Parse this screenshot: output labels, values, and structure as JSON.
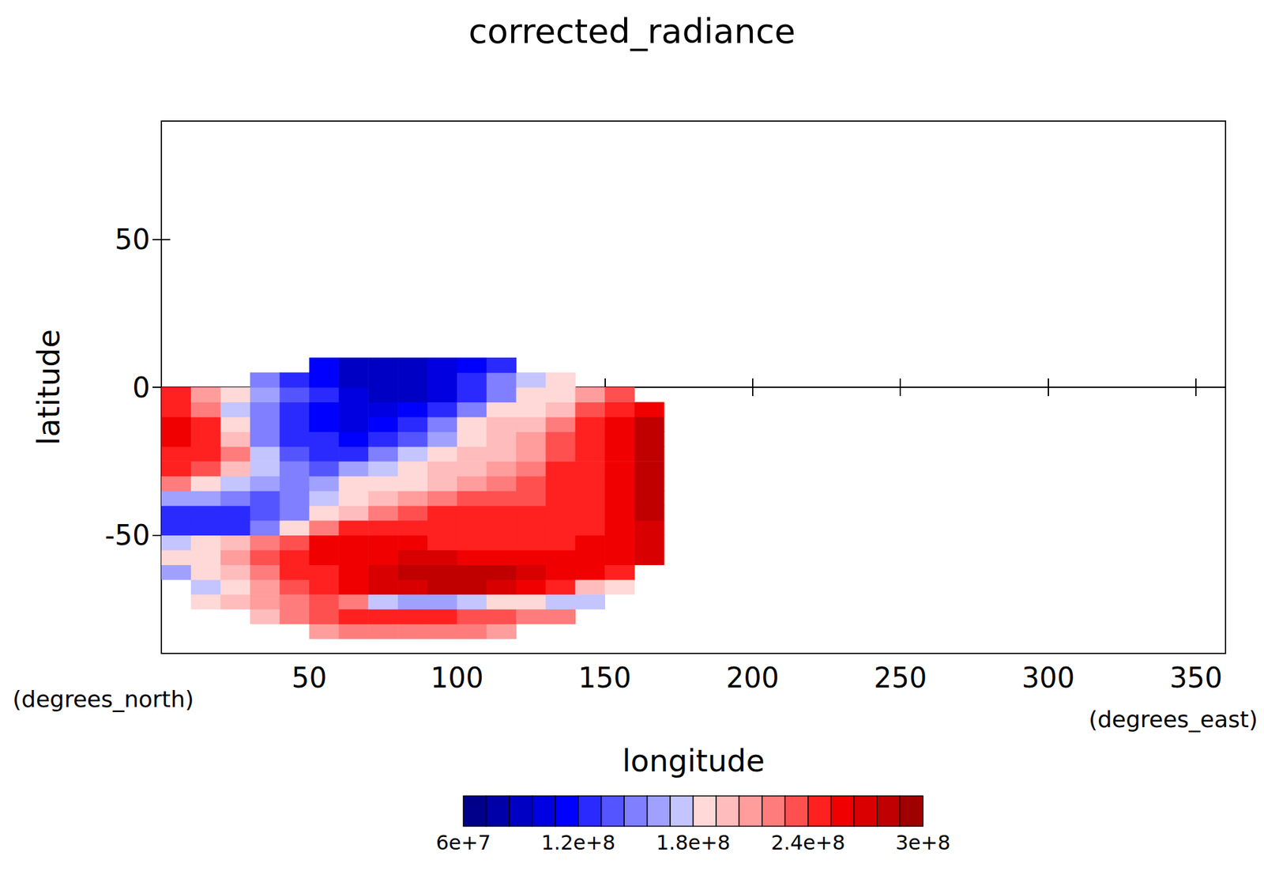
{
  "chart_data": {
    "type": "heatmap",
    "title": "corrected_radiance",
    "x_label": "longitude",
    "y_label": "latitude",
    "x_unit": "(degrees_east)",
    "y_unit": "(degrees_north)",
    "xlim": [
      0,
      360
    ],
    "xticks": [
      50,
      100,
      150,
      200,
      250,
      300,
      350
    ],
    "ylim": [
      -90,
      90
    ],
    "yticks": [
      -50,
      0,
      50
    ],
    "x": [
      0,
      10,
      20,
      30,
      40,
      50,
      60,
      70,
      80,
      90,
      100,
      110,
      120,
      130,
      140,
      150,
      160,
      170
    ],
    "y": [
      -85,
      -80,
      -75,
      -70,
      -65,
      -60,
      -55,
      -50,
      -45,
      -40,
      -35,
      -30,
      -25,
      -20,
      -15,
      -10,
      -5,
      0,
      5,
      10
    ],
    "cells": [
      [
        null,
        null,
        null,
        null,
        null,
        210000000.0,
        220000000.0,
        220000000.0,
        220000000.0,
        220000000.0,
        220000000.0,
        210000000.0,
        null,
        null,
        null,
        null,
        null
      ],
      [
        null,
        null,
        null,
        200000000.0,
        220000000.0,
        230000000.0,
        240000000.0,
        240000000.0,
        240000000.0,
        240000000.0,
        230000000.0,
        230000000.0,
        220000000.0,
        220000000.0,
        null,
        null,
        null
      ],
      [
        null,
        190000000.0,
        200000000.0,
        210000000.0,
        220000000.0,
        230000000.0,
        220000000.0,
        170000000.0,
        160000000.0,
        160000000.0,
        170000000.0,
        180000000.0,
        180000000.0,
        170000000.0,
        170000000.0,
        null,
        null
      ],
      [
        null,
        170000000.0,
        190000000.0,
        210000000.0,
        230000000.0,
        250000000.0,
        260000000.0,
        270000000.0,
        270000000.0,
        280000000.0,
        280000000.0,
        270000000.0,
        260000000.0,
        240000000.0,
        200000000.0,
        180000000.0,
        null
      ],
      [
        160000000.0,
        180000000.0,
        200000000.0,
        220000000.0,
        240000000.0,
        250000000.0,
        260000000.0,
        270000000.0,
        280000000.0,
        280000000.0,
        280000000.0,
        280000000.0,
        270000000.0,
        260000000.0,
        260000000.0,
        250000000.0,
        null
      ],
      [
        190000000.0,
        190000000.0,
        210000000.0,
        230000000.0,
        240000000.0,
        260000000.0,
        260000000.0,
        260000000.0,
        270000000.0,
        270000000.0,
        260000000.0,
        260000000.0,
        260000000.0,
        260000000.0,
        260000000.0,
        260000000.0,
        270000000.0
      ],
      [
        170000000.0,
        180000000.0,
        200000000.0,
        220000000.0,
        230000000.0,
        260000000.0,
        260000000.0,
        260000000.0,
        260000000.0,
        250000000.0,
        250000000.0,
        250000000.0,
        250000000.0,
        250000000.0,
        260000000.0,
        260000000.0,
        270000000.0
      ],
      [
        130000000.0,
        120000000.0,
        130000000.0,
        150000000.0,
        190000000.0,
        220000000.0,
        240000000.0,
        250000000.0,
        250000000.0,
        250000000.0,
        250000000.0,
        240000000.0,
        240000000.0,
        240000000.0,
        250000000.0,
        260000000.0,
        270000000.0
      ],
      [
        130000000.0,
        130000000.0,
        130000000.0,
        140000000.0,
        150000000.0,
        180000000.0,
        200000000.0,
        220000000.0,
        230000000.0,
        240000000.0,
        240000000.0,
        240000000.0,
        240000000.0,
        240000000.0,
        250000000.0,
        260000000.0,
        280000000.0
      ],
      [
        160000000.0,
        160000000.0,
        150000000.0,
        140000000.0,
        150000000.0,
        170000000.0,
        180000000.0,
        200000000.0,
        210000000.0,
        220000000.0,
        230000000.0,
        230000000.0,
        230000000.0,
        240000000.0,
        250000000.0,
        260000000.0,
        280000000.0
      ],
      [
        220000000.0,
        190000000.0,
        170000000.0,
        160000000.0,
        150000000.0,
        160000000.0,
        180000000.0,
        190000000.0,
        190000000.0,
        200000000.0,
        210000000.0,
        220000000.0,
        230000000.0,
        240000000.0,
        250000000.0,
        260000000.0,
        280000000.0
      ],
      [
        240000000.0,
        230000000.0,
        200000000.0,
        170000000.0,
        150000000.0,
        140000000.0,
        160000000.0,
        170000000.0,
        190000000.0,
        200000000.0,
        200000000.0,
        210000000.0,
        220000000.0,
        240000000.0,
        250000000.0,
        260000000.0,
        280000000.0
      ],
      [
        250000000.0,
        240000000.0,
        220000000.0,
        170000000.0,
        140000000.0,
        130000000.0,
        130000000.0,
        150000000.0,
        170000000.0,
        190000000.0,
        200000000.0,
        200000000.0,
        210000000.0,
        230000000.0,
        250000000.0,
        260000000.0,
        280000000.0
      ],
      [
        260000000.0,
        250000000.0,
        200000000.0,
        150000000.0,
        130000000.0,
        120000000.0,
        110000000.0,
        130000000.0,
        140000000.0,
        160000000.0,
        190000000.0,
        200000000.0,
        210000000.0,
        230000000.0,
        240000000.0,
        260000000.0,
        280000000.0
      ],
      [
        260000000.0,
        240000000.0,
        180000000.0,
        150000000.0,
        120000000.0,
        110000000.0,
        100000000.0,
        110000000.0,
        130000000.0,
        150000000.0,
        180000000.0,
        200000000.0,
        200000000.0,
        220000000.0,
        240000000.0,
        260000000.0,
        280000000.0
      ],
      [
        250000000.0,
        220000000.0,
        170000000.0,
        150000000.0,
        130000000.0,
        110000000.0,
        100000000.0,
        100000000.0,
        110000000.0,
        130000000.0,
        150000000.0,
        180000000.0,
        190000000.0,
        200000000.0,
        230000000.0,
        250000000.0,
        260000000.0
      ],
      [
        240000000.0,
        210000000.0,
        180000000.0,
        160000000.0,
        140000000.0,
        120000000.0,
        100000000.0,
        90000000.0,
        90000000.0,
        100000000.0,
        120000000.0,
        150000000.0,
        180000000.0,
        190000000.0,
        210000000.0,
        230000000.0,
        null
      ],
      [
        null,
        null,
        null,
        150000000.0,
        130000000.0,
        110000000.0,
        90000000.0,
        90000000.0,
        90000000.0,
        100000000.0,
        120000000.0,
        150000000.0,
        170000000.0,
        190000000.0,
        null,
        null,
        null
      ],
      [
        null,
        null,
        null,
        null,
        null,
        110000000.0,
        90000000.0,
        90000000.0,
        90000000.0,
        100000000.0,
        110000000.0,
        130000000.0,
        null,
        null,
        null,
        null,
        null
      ]
    ],
    "colorbar": {
      "range": [
        60000000,
        300000000
      ],
      "ticks": [
        {
          "value": 60000000,
          "label": "6e+7"
        },
        {
          "value": 120000000,
          "label": "1.2e+8"
        },
        {
          "value": 180000000,
          "label": "1.8e+8"
        },
        {
          "value": 240000000,
          "label": "2.4e+8"
        },
        {
          "value": 300000000,
          "label": "3e+8"
        }
      ],
      "colors": [
        "#00008b",
        "#0000a8",
        "#0000c4",
        "#0000e0",
        "#0000ff",
        "#2a2aff",
        "#5555ff",
        "#7f7fff",
        "#a0a0ff",
        "#c4c4ff",
        "#ffd8d8",
        "#ffbcbc",
        "#ff9c9c",
        "#ff7c7c",
        "#ff5050",
        "#ff2020",
        "#f00000",
        "#d80000",
        "#c00000",
        "#a00000"
      ]
    }
  }
}
